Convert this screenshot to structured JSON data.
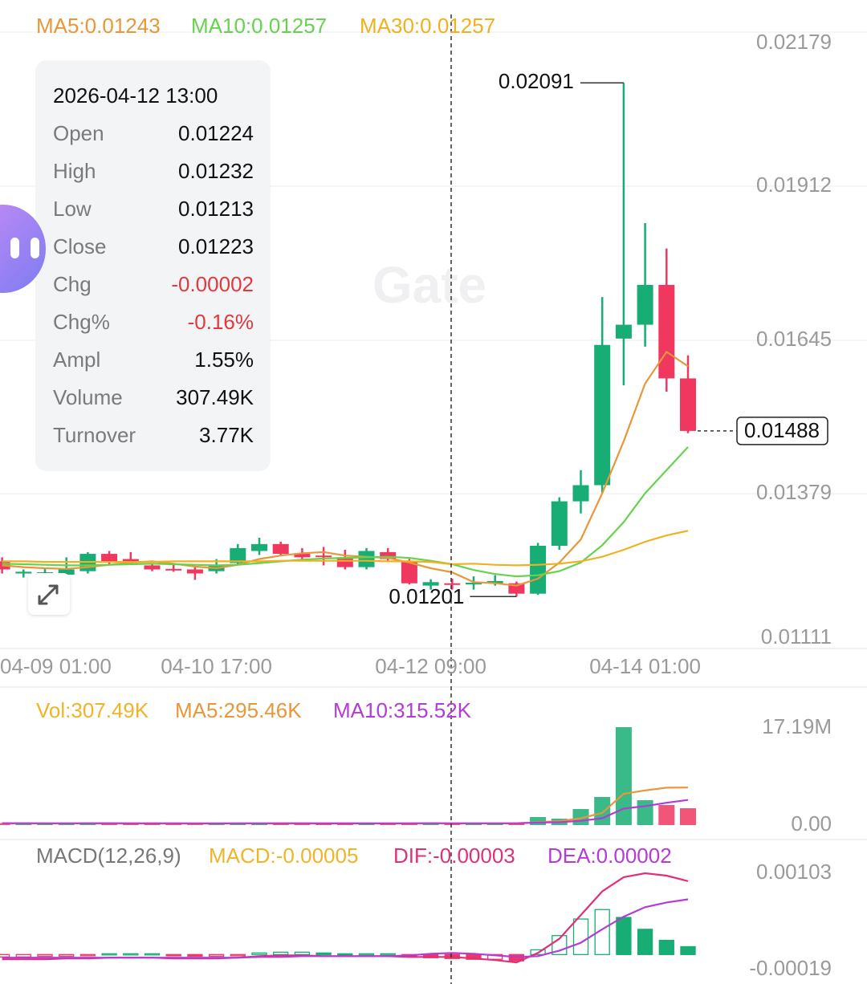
{
  "chart_data": [
    {
      "type": "candlestick",
      "categories": [
        "04-09 01:00",
        null,
        null,
        null,
        null,
        null,
        null,
        null,
        null,
        null,
        "04-10 17:00",
        null,
        null,
        null,
        null,
        null,
        null,
        null,
        null,
        null,
        "04-12 09:00",
        null,
        null,
        null,
        null,
        null,
        null,
        null,
        null,
        null,
        "04-14 01:00",
        null,
        null
      ],
      "open": [
        0.01262,
        0.01241,
        0.01241,
        0.01239,
        0.01245,
        0.01275,
        0.01266,
        0.01255,
        0.01249,
        0.01248,
        0.01245,
        0.01259,
        0.0128,
        0.01292,
        0.01275,
        0.01272,
        0.01269,
        0.01252,
        0.01278,
        0.01262,
        0.0122,
        0.01224,
        0.01222,
        0.01224,
        0.01224,
        0.01206,
        0.01289,
        0.01366,
        0.01394,
        0.01648,
        0.01672,
        0.01741,
        0.01579
      ],
      "high": [
        0.01269,
        0.01248,
        0.0125,
        0.01269,
        0.01278,
        0.0128,
        0.01278,
        0.01259,
        0.01258,
        0.01252,
        0.01266,
        0.01292,
        0.01303,
        0.01296,
        0.01285,
        0.01287,
        0.01282,
        0.01285,
        0.01285,
        0.01266,
        0.01231,
        0.01232,
        0.01236,
        0.01238,
        0.01227,
        0.01294,
        0.01373,
        0.0142,
        0.0172,
        0.02091,
        0.01848,
        0.01804,
        0.01619
      ],
      "low": [
        0.01241,
        0.01234,
        0.01232,
        0.01234,
        0.01241,
        0.01255,
        0.01258,
        0.01245,
        0.01244,
        0.0123,
        0.01241,
        0.01255,
        0.01273,
        0.01272,
        0.01262,
        0.01255,
        0.01248,
        0.01248,
        0.01262,
        0.01222,
        0.01213,
        0.01213,
        0.01213,
        0.0122,
        0.01201,
        0.01204,
        0.01282,
        0.01345,
        0.0138,
        0.01567,
        0.01634,
        0.01556,
        0.01484
      ],
      "close": [
        0.01248,
        0.01244,
        0.01243,
        0.01248,
        0.01275,
        0.01262,
        0.01262,
        0.01248,
        0.01247,
        0.01241,
        0.01255,
        0.01285,
        0.01292,
        0.01275,
        0.01269,
        0.0127,
        0.01252,
        0.0128,
        0.01266,
        0.01224,
        0.01226,
        0.01223,
        0.01225,
        0.01228,
        0.01206,
        0.01289,
        0.01366,
        0.01394,
        0.01637,
        0.01672,
        0.01741,
        0.01579,
        0.01488
      ],
      "up_color": "#17ad74",
      "down_color": "#ef3760",
      "series": [
        {
          "name": "MA5",
          "legend": "MA5:0.01243",
          "color": "#e8973a",
          "values": [
            0.01255,
            0.01252,
            0.0125,
            0.01249,
            0.01252,
            0.01256,
            0.0126,
            0.01262,
            0.01258,
            0.01253,
            0.0125,
            0.01256,
            0.01266,
            0.01272,
            0.01276,
            0.01278,
            0.01272,
            0.0127,
            0.01268,
            0.0126,
            0.0125,
            0.01243,
            0.01226,
            0.01224,
            0.0122,
            0.01232,
            0.0126,
            0.013,
            0.0138,
            0.0147,
            0.0157,
            0.01625,
            0.016
          ]
        },
        {
          "name": "MA10",
          "legend": "MA10:0.01257",
          "color": "#66d24f",
          "values": [
            0.01258,
            0.01257,
            0.01256,
            0.01255,
            0.01255,
            0.01256,
            0.01257,
            0.01258,
            0.01257,
            0.01256,
            0.01255,
            0.01256,
            0.01259,
            0.01262,
            0.01265,
            0.01267,
            0.01268,
            0.01269,
            0.0127,
            0.01268,
            0.01263,
            0.01257,
            0.01247,
            0.0124,
            0.01236,
            0.01238,
            0.01245,
            0.0126,
            0.0129,
            0.0133,
            0.0138,
            0.0142,
            0.0146
          ]
        },
        {
          "name": "MA30",
          "legend": "MA30:0.01257",
          "color": "#f0b020",
          "values": [
            0.01262,
            0.01262,
            0.01261,
            0.01261,
            0.01261,
            0.01261,
            0.01261,
            0.01261,
            0.01262,
            0.01262,
            0.01262,
            0.01262,
            0.01262,
            0.01263,
            0.01263,
            0.01263,
            0.01263,
            0.01263,
            0.01262,
            0.01262,
            0.01261,
            0.01257,
            0.01258,
            0.01256,
            0.01255,
            0.01256,
            0.01258,
            0.01262,
            0.0127,
            0.01282,
            0.01296,
            0.01307,
            0.01315
          ]
        }
      ],
      "ylim": [
        0.01111,
        0.02179
      ],
      "yticks": [
        0.02179,
        0.01912,
        0.01645,
        0.01379,
        0.01111
      ],
      "grid": true
    },
    {
      "type": "bar",
      "legend": "Vol:307.49K",
      "legend_color": "#f0b429",
      "values": [
        350000,
        280000,
        300000,
        320000,
        420000,
        300000,
        250000,
        260000,
        240000,
        280000,
        300000,
        380000,
        330000,
        310000,
        270000,
        250000,
        290000,
        330000,
        280000,
        420000,
        290000,
        307490,
        260000,
        280000,
        350000,
        1410000,
        1130000,
        2820000,
        4930000,
        17190000,
        4370000,
        3520000,
        2960000
      ],
      "series": [
        {
          "name": "MA5",
          "legend": "MA5:295.46K",
          "color": "#e8973a",
          "values": [
            310000,
            305000,
            300000,
            310000,
            334000,
            324000,
            314000,
            310000,
            294000,
            266000,
            266000,
            292000,
            308000,
            320000,
            318000,
            308000,
            290000,
            290000,
            284000,
            314000,
            322000,
            295460,
            300000,
            290000,
            320000,
            518000,
            686000,
            1198000,
            2138000,
            5496000,
            6090000,
            6568000,
            6594000
          ]
        },
        {
          "name": "MA10",
          "legend": "MA10:315.52K",
          "color": "#b43bd6",
          "values": [
            320000,
            318000,
            316000,
            315000,
            316000,
            318000,
            316000,
            314000,
            312000,
            310000,
            300000,
            305000,
            310000,
            312000,
            306000,
            300000,
            298000,
            300000,
            302000,
            310000,
            320000,
            315520,
            310000,
            305000,
            315000,
            430000,
            505000,
            740000,
            1200000,
            2900000,
            3320000,
            3920000,
            4410000
          ]
        }
      ],
      "ylim": [
        0,
        17190000
      ],
      "yticks": [
        {
          "value": 17190000,
          "label": "17.19M"
        },
        {
          "value": 0,
          "label": "0.00"
        }
      ]
    },
    {
      "type": "macd",
      "title": "MACD(12,26,9)",
      "legend": "MACD:-0.00005",
      "legend_color": "#f0b429",
      "values": [
        -3e-05,
        -3e-05,
        -2e-05,
        -2e-05,
        -1e-05,
        1e-05,
        1e-05,
        1e-05,
        -1e-05,
        -2e-05,
        -2e-05,
        -1e-05,
        2e-05,
        3e-05,
        3e-05,
        2e-05,
        1e-05,
        1e-05,
        1e-05,
        -2e-05,
        -4e-05,
        -5e-05,
        -6e-05,
        -6e-05,
        -8e-05,
        6e-05,
        0.00024,
        0.00045,
        0.00057,
        0.00047,
        0.00032,
        0.00018,
        0.0001
      ],
      "series": [
        {
          "name": "DIF",
          "legend": "DIF:-0.00003",
          "color": "#e0307a",
          "values": [
            -6e-05,
            -6e-05,
            -6e-05,
            -5e-05,
            -5e-05,
            -4e-05,
            -4e-05,
            -4e-05,
            -5e-05,
            -5e-05,
            -5e-05,
            -4e-05,
            -2e-05,
            -1e-05,
            -1e-05,
            -2e-05,
            -2e-05,
            -2e-05,
            -2e-05,
            -3e-05,
            -3e-05,
            -3e-05,
            -5e-05,
            -7e-05,
            -0.0001,
            2e-05,
            0.0002,
            0.0005,
            0.0008,
            0.00098,
            0.00103,
            0.001,
            0.00093
          ]
        },
        {
          "name": "DEA",
          "legend": "DEA:0.00002",
          "color": "#b43bd6",
          "values": [
            -4e-05,
            -4e-05,
            -4e-05,
            -4e-05,
            -4e-05,
            -4e-05,
            -4e-05,
            -4e-05,
            -4e-05,
            -4e-05,
            -4e-05,
            -4e-05,
            -3e-05,
            -3e-05,
            -2e-05,
            -2e-05,
            -2e-05,
            -2e-05,
            -2e-05,
            -1e-05,
            1e-05,
            2e-05,
            1e-05,
            -1e-05,
            -3e-05,
            -2e-05,
            5e-05,
            0.00015,
            0.00032,
            0.00048,
            0.0006,
            0.00066,
            0.0007
          ]
        }
      ],
      "ylim": [
        -0.00019,
        0.00103
      ],
      "yticks": [
        0.00103,
        -0.00019
      ]
    }
  ],
  "tooltip": {
    "time": "2026-04-12 13:00",
    "rows": [
      {
        "label": "Open",
        "value": 0.01224
      },
      {
        "label": "High",
        "value": 0.01232
      },
      {
        "label": "Low",
        "value": 0.01213
      },
      {
        "label": "Close",
        "value": 0.01223
      },
      {
        "label": "Chg",
        "value": -2e-05,
        "color": "#e0393e"
      },
      {
        "label": "Chg%",
        "value": "-0.16%",
        "color": "#e0393e"
      },
      {
        "label": "Ampl",
        "value": "1.55%"
      },
      {
        "label": "Volume",
        "value": "307.49K"
      },
      {
        "label": "Turnover",
        "value": "3.77K"
      }
    ]
  },
  "watermark": "Gate"
}
